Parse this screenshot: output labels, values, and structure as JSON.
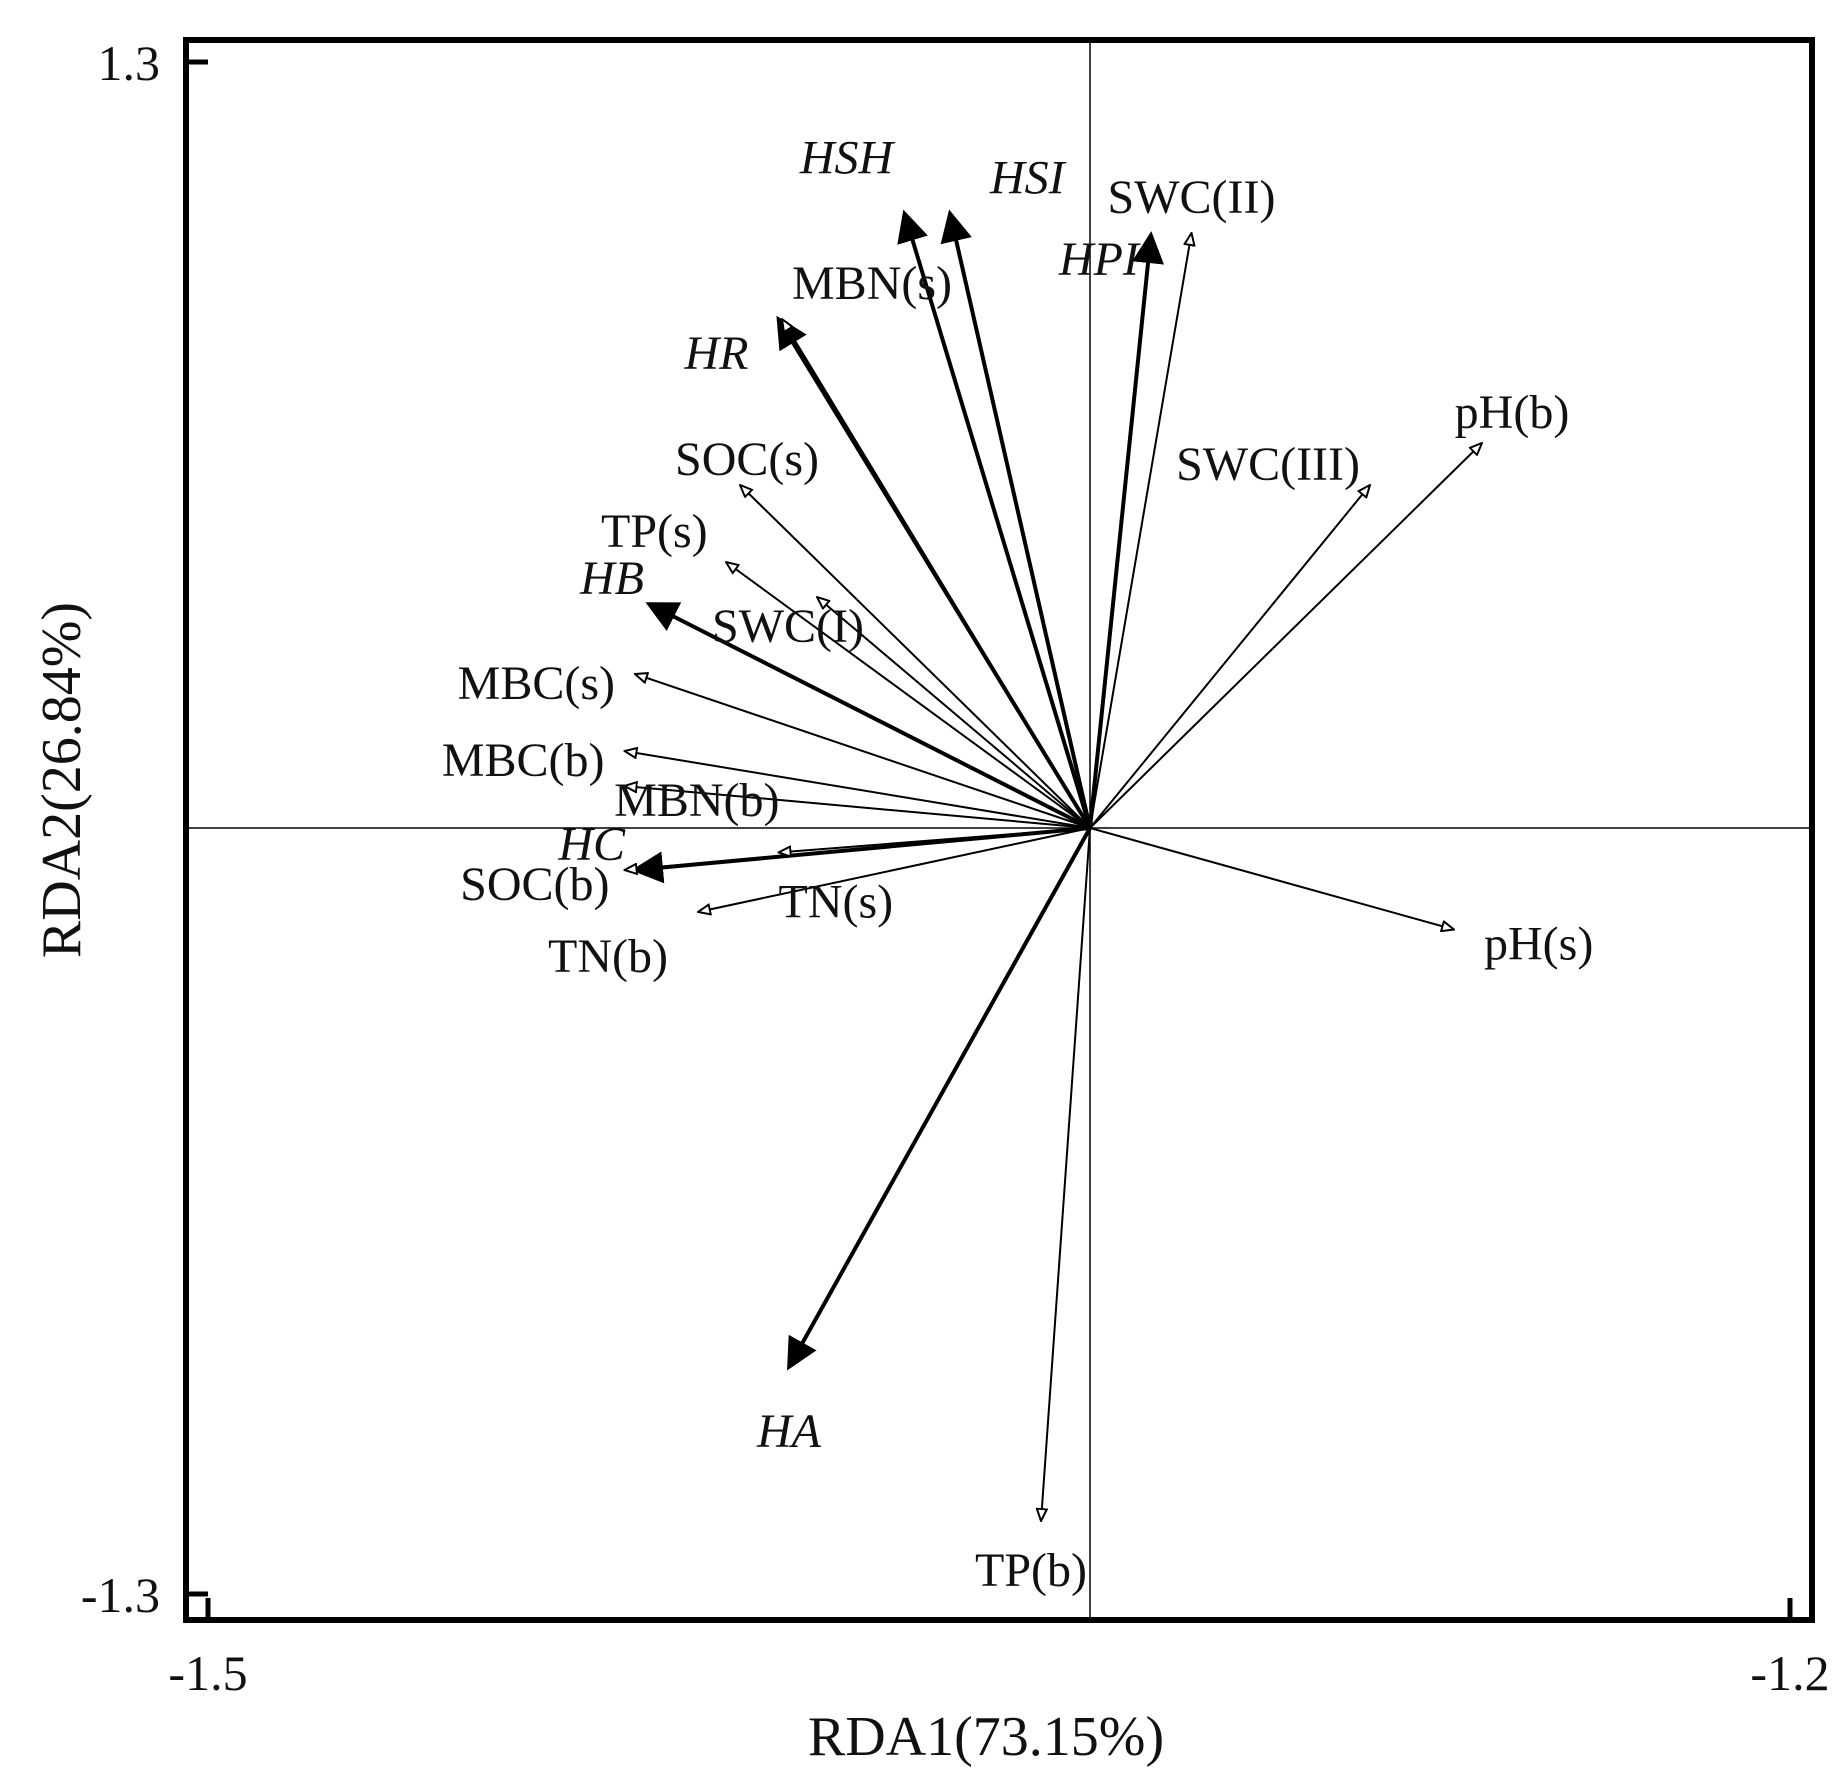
{
  "chart_data": {
    "type": "scatter",
    "subtype": "rda-biplot",
    "xlabel": "RDA1(73.15%)",
    "ylabel": "RDA2(26.84%)",
    "x_ticks": [
      "-1.5",
      "-1.2"
    ],
    "y_ticks": [
      "1.3",
      "-1.3"
    ],
    "xlim": [
      -1.5,
      -1.2
    ],
    "ylim": [
      -1.3,
      1.3
    ],
    "grid": false,
    "series": [
      {
        "group": "response",
        "arrow_style": "filled-bold",
        "color": "#000000",
        "italic": true,
        "vectors": [
          {
            "name": "HSH",
            "x": -0.265,
            "y": 0.878
          },
          {
            "name": "HSI",
            "x": -0.2,
            "y": 0.878
          },
          {
            "name": "HPI",
            "x": 0.087,
            "y": 0.847
          },
          {
            "name": "HR",
            "x": -0.445,
            "y": 0.727
          },
          {
            "name": "HB",
            "x": -0.63,
            "y": 0.32
          },
          {
            "name": "HC",
            "x": -0.65,
            "y": -0.06
          },
          {
            "name": "HA",
            "x": -0.43,
            "y": -0.77
          }
        ]
      },
      {
        "group": "explanatory",
        "arrow_style": "hollow-thin",
        "color": "#000000",
        "italic": false,
        "vectors": [
          {
            "name": "MBN(s)",
            "x": -0.44,
            "y": 0.727
          },
          {
            "name": "SOC(s)",
            "x": -0.5,
            "y": 0.49
          },
          {
            "name": "TP(s)",
            "x": -0.52,
            "y": 0.38
          },
          {
            "name": "SWC(I)",
            "x": -0.39,
            "y": 0.33
          },
          {
            "name": "MBC(s)",
            "x": -0.65,
            "y": 0.22
          },
          {
            "name": "MBC(b)",
            "x": -0.665,
            "y": 0.11
          },
          {
            "name": "MBN(b)",
            "x": -0.665,
            "y": 0.06
          },
          {
            "name": "SOC(b)",
            "x": -0.665,
            "y": -0.06
          },
          {
            "name": "TN(s)",
            "x": -0.445,
            "y": -0.035
          },
          {
            "name": "TN(b)",
            "x": -0.56,
            "y": -0.12
          },
          {
            "name": "SWC(II)",
            "x": 0.145,
            "y": 0.85
          },
          {
            "name": "SWC(III)",
            "x": 0.4,
            "y": 0.49
          },
          {
            "name": "pH(b)",
            "x": 0.56,
            "y": 0.55
          },
          {
            "name": "pH(s)",
            "x": 0.52,
            "y": -0.145
          },
          {
            "name": "TP(b)",
            "x": -0.07,
            "y": -0.99
          }
        ]
      }
    ]
  }
}
